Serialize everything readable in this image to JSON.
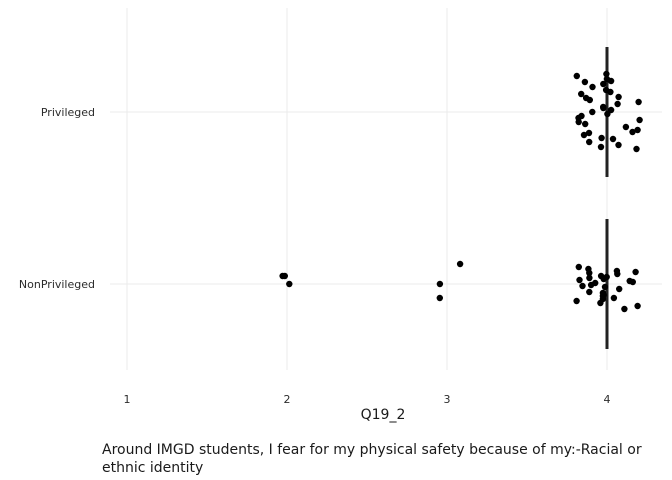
{
  "chart_data": {
    "type": "scatter",
    "xlabel": "Q19_2",
    "ylabel": "",
    "xlim": [
      0.9,
      4.35
    ],
    "x_ticks": [
      "1",
      "2",
      "3",
      "4"
    ],
    "x_tick_values": [
      1,
      2,
      3,
      4
    ],
    "categories": [
      "Privileged",
      "NonPrivileged"
    ],
    "grid": "on",
    "points": [
      {
        "category": "Privileged",
        "x": 4,
        "jitter": 0.38
      },
      {
        "category": "Privileged",
        "x": 4,
        "jitter": 0.31
      },
      {
        "category": "Privileged",
        "x": 4,
        "jitter": 0.18
      },
      {
        "category": "Privileged",
        "x": 4,
        "jitter": 0.12
      },
      {
        "category": "Privileged",
        "x": 4,
        "jitter": 0.05
      },
      {
        "category": "Privileged",
        "x": 4,
        "jitter": -0.02
      },
      {
        "category": "Privileged",
        "x": 4,
        "jitter": -0.1
      },
      {
        "category": "Privileged",
        "x": 4,
        "jitter": -0.2
      },
      {
        "category": "Privileged",
        "x": 4,
        "jitter": -0.27
      },
      {
        "category": "Privileged",
        "x": 4,
        "jitter": -0.35
      },
      {
        "category": "Privileged",
        "x": 4,
        "jitter": 0.25
      },
      {
        "category": "Privileged",
        "x": 4,
        "jitter": -0.15
      },
      {
        "category": "Privileged",
        "x": 4,
        "jitter": 0.08
      },
      {
        "category": "Privileged",
        "x": 4,
        "jitter": -0.06
      },
      {
        "category": "Privileged",
        "x": 4,
        "jitter": 0.33
      },
      {
        "category": "Privileged",
        "x": 4,
        "jitter": -0.3
      },
      {
        "category": "Privileged",
        "x": 4,
        "jitter": 0.15
      },
      {
        "category": "Privileged",
        "x": 4,
        "jitter": -0.23
      },
      {
        "category": "Privileged",
        "x": 4,
        "jitter": 0.02
      },
      {
        "category": "Privileged",
        "x": 4,
        "jitter": 0.22
      },
      {
        "category": "Privileged",
        "x": 4,
        "jitter": -0.12
      },
      {
        "category": "Privileged",
        "x": 4,
        "jitter": 0.36
      },
      {
        "category": "Privileged",
        "x": 4,
        "jitter": -0.37
      },
      {
        "category": "Privileged",
        "x": 4,
        "jitter": 0.1
      },
      {
        "category": "Privileged",
        "x": 4,
        "jitter": -0.04
      },
      {
        "category": "Privileged",
        "x": 4,
        "jitter": 0.28
      },
      {
        "category": "Privileged",
        "x": 4,
        "jitter": -0.18
      },
      {
        "category": "Privileged",
        "x": 4,
        "jitter": 0.14
      },
      {
        "category": "Privileged",
        "x": 4,
        "jitter": -0.26
      },
      {
        "category": "Privileged",
        "x": 4,
        "jitter": 0.2
      },
      {
        "category": "Privileged",
        "x": 4,
        "jitter": -0.33
      },
      {
        "category": "Privileged",
        "x": 4,
        "jitter": 0.0
      },
      {
        "category": "Privileged",
        "x": 4,
        "jitter": 0.3
      },
      {
        "category": "Privileged",
        "x": 4,
        "jitter": -0.08
      },
      {
        "category": "Privileged",
        "x": 4,
        "jitter": 0.04
      },
      {
        "category": "Privileged",
        "x": 4,
        "jitter": -0.21
      },
      {
        "category": "NonPrivileged",
        "x": 2,
        "jitter": 0.0
      },
      {
        "category": "NonPrivileged",
        "x": 2,
        "jitter": 0.08
      },
      {
        "category": "NonPrivileged",
        "x": 2,
        "jitter": 0.08
      },
      {
        "category": "NonPrivileged",
        "x": 3,
        "jitter": 0.2
      },
      {
        "category": "NonPrivileged",
        "x": 3,
        "jitter": 0.0
      },
      {
        "category": "NonPrivileged",
        "x": 3,
        "jitter": -0.14
      },
      {
        "category": "NonPrivileged",
        "x": 4,
        "jitter": 0.17
      },
      {
        "category": "NonPrivileged",
        "x": 4,
        "jitter": 0.12
      },
      {
        "category": "NonPrivileged",
        "x": 4,
        "jitter": 0.06
      },
      {
        "category": "NonPrivileged",
        "x": 4,
        "jitter": 0.02
      },
      {
        "category": "NonPrivileged",
        "x": 4,
        "jitter": -0.03
      },
      {
        "category": "NonPrivileged",
        "x": 4,
        "jitter": -0.08
      },
      {
        "category": "NonPrivileged",
        "x": 4,
        "jitter": -0.14
      },
      {
        "category": "NonPrivileged",
        "x": 4,
        "jitter": -0.19
      },
      {
        "category": "NonPrivileged",
        "x": 4,
        "jitter": -0.25
      },
      {
        "category": "NonPrivileged",
        "x": 4,
        "jitter": 0.1
      },
      {
        "category": "NonPrivileged",
        "x": 4,
        "jitter": -0.02
      },
      {
        "category": "NonPrivileged",
        "x": 4,
        "jitter": 0.15
      },
      {
        "category": "NonPrivileged",
        "x": 4,
        "jitter": -0.11
      },
      {
        "category": "NonPrivileged",
        "x": 4,
        "jitter": 0.04
      },
      {
        "category": "NonPrivileged",
        "x": 4,
        "jitter": -0.17
      },
      {
        "category": "NonPrivileged",
        "x": 4,
        "jitter": 0.08
      },
      {
        "category": "NonPrivileged",
        "x": 4,
        "jitter": -0.05
      },
      {
        "category": "NonPrivileged",
        "x": 4,
        "jitter": 0.13
      },
      {
        "category": "NonPrivileged",
        "x": 4,
        "jitter": -0.22
      },
      {
        "category": "NonPrivileged",
        "x": 4,
        "jitter": 0.01
      },
      {
        "category": "NonPrivileged",
        "x": 4,
        "jitter": -0.09
      },
      {
        "category": "NonPrivileged",
        "x": 4,
        "jitter": 0.07
      },
      {
        "category": "NonPrivileged",
        "x": 4,
        "jitter": -0.15
      },
      {
        "category": "NonPrivileged",
        "x": 4,
        "jitter": 0.03
      },
      {
        "category": "NonPrivileged",
        "x": 4,
        "jitter": 0.05
      },
      {
        "category": "NonPrivileged",
        "x": 4,
        "jitter": -0.12
      },
      {
        "category": "NonPrivileged",
        "x": 4,
        "jitter": -0.01
      },
      {
        "category": "NonPrivileged",
        "x": 4,
        "jitter": 0.11
      }
    ],
    "medians": [
      {
        "category": "Privileged",
        "x": 4
      },
      {
        "category": "NonPrivileged",
        "x": 4
      }
    ],
    "caption": "Around IMGD students, I fear for my physical safety because of my:-Racial or ethnic identity"
  }
}
